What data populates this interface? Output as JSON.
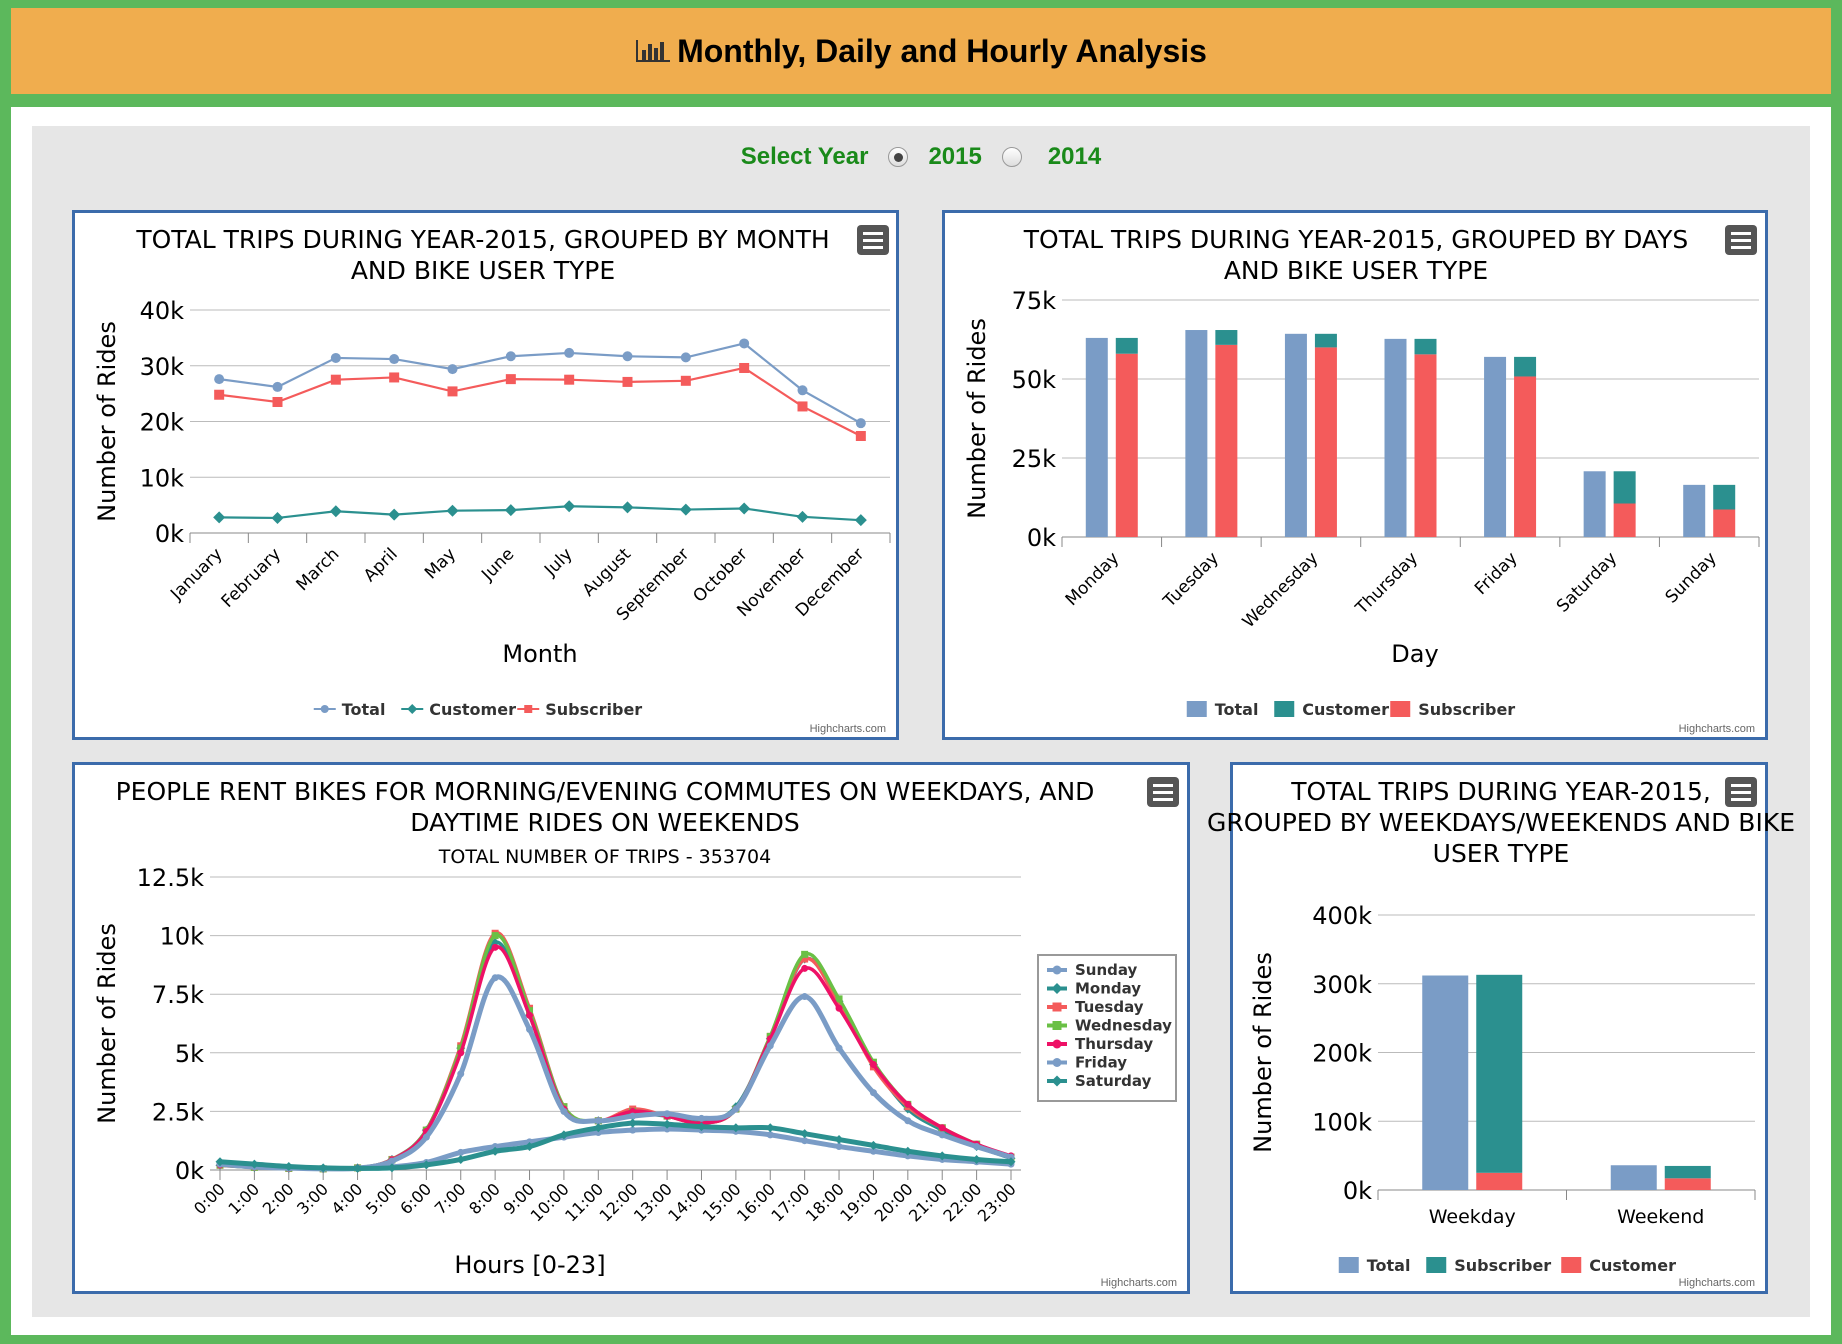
{
  "header": {
    "title": "Monthly, Daily and Hourly Analysis",
    "icon": "bar-chart-icon"
  },
  "year_selector": {
    "label": "Select Year",
    "options": [
      {
        "label": "2015",
        "selected": true
      },
      {
        "label": "2014",
        "selected": false
      }
    ]
  },
  "credits": "Highcharts.com",
  "colors": {
    "blue": "#7a9cc6",
    "teal": "#2b908f",
    "red": "#f45b5b",
    "green": "#6ac045",
    "pink": "#ee1166",
    "border": "#3b6bab",
    "header": "#f0ad4e",
    "page": "#5cb85c"
  },
  "chart_data": [
    {
      "type": "line",
      "title": "TOTAL TRIPS DURING YEAR-2015, GROUPED BY MONTH AND BIKE USER TYPE",
      "xlabel": "Month",
      "ylabel": "Number of Rides",
      "categories": [
        "January",
        "February",
        "March",
        "April",
        "May",
        "June",
        "July",
        "August",
        "September",
        "October",
        "November",
        "December"
      ],
      "yticks": [
        "0k",
        "10k",
        "20k",
        "30k",
        "40k"
      ],
      "ylim": [
        0,
        40000
      ],
      "grid": true,
      "legend": "bottom",
      "series": [
        {
          "name": "Total",
          "color": "#7a9cc6",
          "marker": "circle",
          "values": [
            27600,
            26200,
            31400,
            31200,
            29400,
            31700,
            32300,
            31700,
            31500,
            34000,
            25600,
            19700
          ]
        },
        {
          "name": "Customer",
          "color": "#2b908f",
          "marker": "diamond",
          "values": [
            2800,
            2700,
            3900,
            3300,
            4000,
            4100,
            4800,
            4600,
            4200,
            4400,
            2900,
            2300
          ]
        },
        {
          "name": "Subscriber",
          "color": "#f45b5b",
          "marker": "square",
          "values": [
            24800,
            23500,
            27500,
            27900,
            25400,
            27600,
            27500,
            27100,
            27300,
            29600,
            22700,
            17400
          ]
        }
      ]
    },
    {
      "type": "bar",
      "title": "TOTAL TRIPS DURING YEAR-2015, GROUPED BY DAYS AND BIKE USER TYPE",
      "xlabel": "Day",
      "ylabel": "Number of Rides",
      "categories": [
        "Monday",
        "Tuesday",
        "Wednesday",
        "Thursday",
        "Friday",
        "Saturday",
        "Sunday"
      ],
      "yticks": [
        "0k",
        "25k",
        "50k",
        "75k"
      ],
      "ylim": [
        0,
        75000
      ],
      "grid": true,
      "legend": "bottom",
      "series": [
        {
          "name": "Total",
          "color": "#7a9cc6",
          "values": [
            63000,
            65500,
            64300,
            62700,
            57000,
            20800,
            16500
          ]
        },
        {
          "name": "Customer",
          "color": "#2b908f",
          "values": [
            5000,
            4700,
            4300,
            4900,
            6200,
            10200,
            7800
          ]
        },
        {
          "name": "Subscriber",
          "color": "#f45b5b",
          "values": [
            58000,
            60800,
            60000,
            57800,
            50800,
            10600,
            8700
          ]
        }
      ]
    },
    {
      "type": "line",
      "title": "PEOPLE RENT BIKES FOR MORNING/EVENING COMMUTES ON WEEKDAYS, AND DAYTIME RIDES ON WEEKENDS",
      "subtitle": "TOTAL NUMBER OF TRIPS - 353704",
      "xlabel": "Hours [0-23]",
      "ylabel": "Number of Rides",
      "categories": [
        "0:00",
        "1:00",
        "2:00",
        "3:00",
        "4:00",
        "5:00",
        "6:00",
        "7:00",
        "8:00",
        "9:00",
        "10:00",
        "11:00",
        "12:00",
        "13:00",
        "14:00",
        "15:00",
        "16:00",
        "17:00",
        "18:00",
        "19:00",
        "20:00",
        "21:00",
        "22:00",
        "23:00"
      ],
      "yticks": [
        "0k",
        "2.5k",
        "5k",
        "7.5k",
        "10k",
        "12.5k"
      ],
      "ylim": [
        0,
        12500
      ],
      "grid": true,
      "legend": "right",
      "series": [
        {
          "name": "Sunday",
          "color": "#7a9cc6",
          "values": [
            250,
            180,
            110,
            70,
            60,
            130,
            320,
            750,
            1000,
            1200,
            1400,
            1600,
            1700,
            1750,
            1700,
            1650,
            1500,
            1250,
            1000,
            800,
            600,
            450,
            350,
            250
          ]
        },
        {
          "name": "Monday",
          "color": "#2b908f",
          "values": [
            200,
            110,
            70,
            50,
            90,
            450,
            1700,
            5200,
            9700,
            6600,
            2600,
            2100,
            2400,
            2300,
            2100,
            2700,
            5600,
            9000,
            7200,
            4500,
            2600,
            1700,
            1000,
            500
          ]
        },
        {
          "name": "Tuesday",
          "color": "#f45b5b",
          "values": [
            200,
            120,
            70,
            50,
            90,
            450,
            1700,
            5300,
            10100,
            6900,
            2700,
            2100,
            2600,
            2300,
            2000,
            2600,
            5700,
            9000,
            7100,
            4400,
            2700,
            1800,
            1100,
            550
          ]
        },
        {
          "name": "Wednesday",
          "color": "#6ac045",
          "values": [
            210,
            110,
            70,
            50,
            90,
            430,
            1700,
            5200,
            10000,
            6800,
            2700,
            2100,
            2500,
            2300,
            2000,
            2600,
            5700,
            9200,
            7300,
            4600,
            2800,
            1800,
            1100,
            550
          ]
        },
        {
          "name": "Thursday",
          "color": "#ee1166",
          "values": [
            220,
            120,
            70,
            50,
            90,
            430,
            1650,
            5000,
            9500,
            6600,
            2600,
            2100,
            2500,
            2300,
            2000,
            2600,
            5600,
            8600,
            6900,
            4500,
            2800,
            1800,
            1100,
            600
          ]
        },
        {
          "name": "Friday",
          "color": "#7a9cc6",
          "values": [
            250,
            130,
            80,
            50,
            80,
            380,
            1400,
            4100,
            8200,
            6000,
            2500,
            2100,
            2300,
            2400,
            2200,
            2600,
            5300,
            7400,
            5200,
            3300,
            2100,
            1500,
            1000,
            550
          ]
        },
        {
          "name": "Saturday",
          "color": "#2b908f",
          "values": [
            350,
            250,
            150,
            90,
            70,
            90,
            220,
            450,
            800,
            1000,
            1500,
            1800,
            2000,
            1950,
            1850,
            1800,
            1800,
            1550,
            1300,
            1050,
            800,
            600,
            450,
            350
          ]
        }
      ]
    },
    {
      "type": "bar",
      "title": "TOTAL TRIPS DURING YEAR-2015, GROUPED BY WEEKDAYS/WEEKENDS AND BIKE USER TYPE",
      "ylabel": "Number of Rides",
      "categories": [
        "Weekday",
        "Weekend"
      ],
      "yticks": [
        "0k",
        "100k",
        "200k",
        "300k",
        "400k"
      ],
      "ylim": [
        0,
        400000
      ],
      "grid": true,
      "legend": "bottom",
      "series": [
        {
          "name": "Total",
          "color": "#7a9cc6",
          "values": [
            312000,
            36000
          ]
        },
        {
          "name": "Subscriber",
          "color": "#2b908f",
          "values": [
            288000,
            18000
          ]
        },
        {
          "name": "Customer",
          "color": "#f45b5b",
          "values": [
            25000,
            17000
          ]
        }
      ]
    }
  ]
}
